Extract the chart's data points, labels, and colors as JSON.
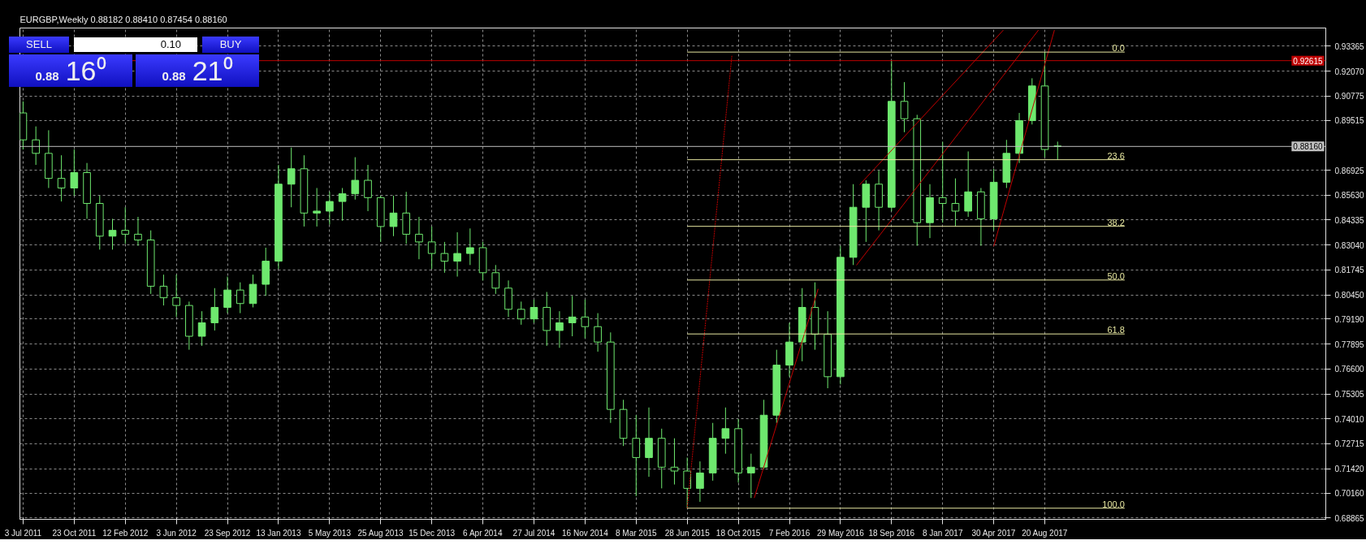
{
  "chart_data": {
    "type": "candlestick",
    "title": "EURGBP,Weekly 0.88182 0.88410 0.87454 0.88160",
    "annotations": [
      "SELL",
      "0.10",
      "BUY",
      "0.88 16⁰",
      "0.88 21⁰"
    ],
    "xlim": [
      "2011-06-26",
      "2019-04-28"
    ],
    "xticks": [
      {
        "value": "2011-07-03",
        "label": "3 Jul 2011"
      },
      {
        "value": "2011-10-23",
        "label": "23 Oct 2011"
      },
      {
        "value": "2012-02-12",
        "label": "12 Feb 2012"
      },
      {
        "value": "2012-06-03",
        "label": "3 Jun 2012"
      },
      {
        "value": "2012-09-23",
        "label": "23 Sep 2012"
      },
      {
        "value": "2013-01-13",
        "label": "13 Jan 2013"
      },
      {
        "value": "2013-05-05",
        "label": "5 May 2013"
      },
      {
        "value": "2013-08-25",
        "label": "25 Aug 2013"
      },
      {
        "value": "2013-12-15",
        "label": "15 Dec 2013"
      },
      {
        "value": "2014-04-06",
        "label": "6 Apr 2014"
      },
      {
        "value": "2014-07-27",
        "label": "27 Jul 2014"
      },
      {
        "value": "2014-11-16",
        "label": "16 Nov 2014"
      },
      {
        "value": "2015-03-08",
        "label": "8 Mar 2015"
      },
      {
        "value": "2015-06-28",
        "label": "28 Jun 2015"
      },
      {
        "value": "2015-10-18",
        "label": "18 Oct 2015"
      },
      {
        "value": "2016-02-07",
        "label": "7 Feb 2016"
      },
      {
        "value": "2016-05-29",
        "label": "29 May 2016"
      },
      {
        "value": "2016-09-18",
        "label": "18 Sep 2016"
      },
      {
        "value": "2017-01-08",
        "label": "8 Jan 2017"
      },
      {
        "value": "2017-04-30",
        "label": "30 Apr 2017"
      },
      {
        "value": "2017-08-20",
        "label": "20 Aug 2017"
      }
    ],
    "ylim": [
      0.6879,
      0.9431
    ],
    "yticks": [
      {
        "value": 0.93365,
        "label": "0.93365"
      },
      {
        "value": 0.9207,
        "label": "0.92070"
      },
      {
        "value": 0.90775,
        "label": "0.90775"
      },
      {
        "value": 0.89515,
        "label": "0.89515"
      },
      {
        "value": 0.86925,
        "label": "0.86925"
      },
      {
        "value": 0.8563,
        "label": "0.85630"
      },
      {
        "value": 0.84335,
        "label": "0.84335"
      },
      {
        "value": 0.8304,
        "label": "0.83040"
      },
      {
        "value": 0.81745,
        "label": "0.81745"
      },
      {
        "value": 0.8045,
        "label": "0.80450"
      },
      {
        "value": 0.7919,
        "label": "0.79190"
      },
      {
        "value": 0.77895,
        "label": "0.77895"
      },
      {
        "value": 0.766,
        "label": "0.76600"
      },
      {
        "value": 0.75305,
        "label": "0.75305"
      },
      {
        "value": 0.7401,
        "label": "0.74010"
      },
      {
        "value": 0.72715,
        "label": "0.72715"
      },
      {
        "value": 0.7142,
        "label": "0.71420"
      },
      {
        "value": 0.7016,
        "label": "0.70160"
      },
      {
        "value": 0.68865,
        "label": "0.68865"
      }
    ],
    "grid": true,
    "ref_lines": [
      {
        "axis": "y",
        "value": 0.92615,
        "label": "0.92615",
        "color": "#c00000"
      },
      {
        "axis": "y",
        "value": 0.8816,
        "label": "0.88160",
        "color": "#c0c0c0"
      }
    ],
    "series": [
      {
        "type": "candlestick",
        "color": "#6ee86e",
        "x": [
          "2011-07-03",
          "2011-07-31",
          "2011-08-28",
          "2011-09-25",
          "2011-10-23",
          "2011-11-20",
          "2011-12-18",
          "2012-01-15",
          "2012-02-12",
          "2012-03-11",
          "2012-04-08",
          "2012-05-06",
          "2012-06-03",
          "2012-07-01",
          "2012-07-29",
          "2012-08-26",
          "2012-09-23",
          "2012-10-21",
          "2012-11-18",
          "2012-12-16",
          "2013-01-13",
          "2013-02-10",
          "2013-03-10",
          "2013-04-07",
          "2013-05-05",
          "2013-06-02",
          "2013-06-30",
          "2013-07-28",
          "2013-08-25",
          "2013-09-22",
          "2013-10-20",
          "2013-11-17",
          "2013-12-15",
          "2014-01-12",
          "2014-02-09",
          "2014-03-09",
          "2014-04-06",
          "2014-05-04",
          "2014-06-01",
          "2014-06-29",
          "2014-07-27",
          "2014-08-24",
          "2014-09-21",
          "2014-10-19",
          "2014-11-16",
          "2014-12-14",
          "2015-01-11",
          "2015-02-08",
          "2015-03-08",
          "2015-04-05",
          "2015-05-03",
          "2015-05-31",
          "2015-06-28",
          "2015-07-26",
          "2015-08-23",
          "2015-09-20",
          "2015-10-18",
          "2015-11-15",
          "2015-12-13",
          "2016-01-10",
          "2016-02-07",
          "2016-03-06",
          "2016-04-03",
          "2016-05-01",
          "2016-05-29",
          "2016-06-26",
          "2016-07-24",
          "2016-08-21",
          "2016-09-18",
          "2016-10-16",
          "2016-11-13",
          "2016-12-11",
          "2017-01-08",
          "2017-02-05",
          "2017-03-05",
          "2017-04-02",
          "2017-04-30",
          "2017-05-28",
          "2017-06-25",
          "2017-07-23",
          "2017-08-20",
          "2017-09-17"
        ],
        "ohlc": [
          [
            0.899,
            0.905,
            0.88,
            0.885
          ],
          [
            0.885,
            0.892,
            0.872,
            0.878
          ],
          [
            0.878,
            0.89,
            0.86,
            0.865
          ],
          [
            0.865,
            0.877,
            0.853,
            0.86
          ],
          [
            0.86,
            0.88,
            0.856,
            0.868
          ],
          [
            0.868,
            0.873,
            0.844,
            0.852
          ],
          [
            0.852,
            0.856,
            0.828,
            0.835
          ],
          [
            0.835,
            0.844,
            0.828,
            0.838
          ],
          [
            0.838,
            0.85,
            0.831,
            0.836
          ],
          [
            0.836,
            0.845,
            0.83,
            0.833
          ],
          [
            0.833,
            0.838,
            0.805,
            0.809
          ],
          [
            0.809,
            0.815,
            0.799,
            0.803
          ],
          [
            0.803,
            0.815,
            0.793,
            0.799
          ],
          [
            0.799,
            0.801,
            0.776,
            0.783
          ],
          [
            0.783,
            0.796,
            0.778,
            0.79
          ],
          [
            0.79,
            0.808,
            0.786,
            0.798
          ],
          [
            0.798,
            0.814,
            0.795,
            0.807
          ],
          [
            0.807,
            0.811,
            0.795,
            0.8
          ],
          [
            0.8,
            0.815,
            0.798,
            0.81
          ],
          [
            0.81,
            0.829,
            0.804,
            0.822
          ],
          [
            0.822,
            0.872,
            0.818,
            0.862
          ],
          [
            0.862,
            0.881,
            0.85,
            0.87
          ],
          [
            0.87,
            0.877,
            0.84,
            0.847
          ],
          [
            0.847,
            0.86,
            0.84,
            0.848
          ],
          [
            0.848,
            0.858,
            0.841,
            0.853
          ],
          [
            0.853,
            0.86,
            0.843,
            0.857
          ],
          [
            0.857,
            0.876,
            0.854,
            0.864
          ],
          [
            0.864,
            0.872,
            0.848,
            0.855
          ],
          [
            0.855,
            0.856,
            0.832,
            0.84
          ],
          [
            0.84,
            0.856,
            0.835,
            0.847
          ],
          [
            0.847,
            0.858,
            0.831,
            0.836
          ],
          [
            0.836,
            0.845,
            0.823,
            0.832
          ],
          [
            0.832,
            0.84,
            0.818,
            0.826
          ],
          [
            0.826,
            0.832,
            0.816,
            0.822
          ],
          [
            0.822,
            0.837,
            0.814,
            0.826
          ],
          [
            0.826,
            0.839,
            0.82,
            0.829
          ],
          [
            0.829,
            0.832,
            0.812,
            0.816
          ],
          [
            0.816,
            0.82,
            0.805,
            0.808
          ],
          [
            0.808,
            0.812,
            0.793,
            0.797
          ],
          [
            0.797,
            0.801,
            0.789,
            0.792
          ],
          [
            0.792,
            0.802,
            0.79,
            0.798
          ],
          [
            0.798,
            0.806,
            0.778,
            0.786
          ],
          [
            0.786,
            0.796,
            0.777,
            0.79
          ],
          [
            0.79,
            0.804,
            0.783,
            0.793
          ],
          [
            0.793,
            0.802,
            0.782,
            0.788
          ],
          [
            0.788,
            0.795,
            0.775,
            0.78
          ],
          [
            0.78,
            0.785,
            0.738,
            0.745
          ],
          [
            0.745,
            0.75,
            0.726,
            0.73
          ],
          [
            0.73,
            0.742,
            0.7,
            0.72
          ],
          [
            0.72,
            0.746,
            0.71,
            0.73
          ],
          [
            0.73,
            0.735,
            0.704,
            0.715
          ],
          [
            0.715,
            0.73,
            0.706,
            0.713
          ],
          [
            0.713,
            0.72,
            0.6936,
            0.704
          ],
          [
            0.704,
            0.718,
            0.697,
            0.712
          ],
          [
            0.712,
            0.738,
            0.708,
            0.73
          ],
          [
            0.73,
            0.746,
            0.722,
            0.735
          ],
          [
            0.735,
            0.74,
            0.707,
            0.712
          ],
          [
            0.712,
            0.722,
            0.699,
            0.715
          ],
          [
            0.715,
            0.75,
            0.714,
            0.742
          ],
          [
            0.742,
            0.776,
            0.738,
            0.768
          ],
          [
            0.768,
            0.79,
            0.762,
            0.78
          ],
          [
            0.78,
            0.808,
            0.77,
            0.798
          ],
          [
            0.798,
            0.811,
            0.776,
            0.784
          ],
          [
            0.784,
            0.796,
            0.756,
            0.762
          ],
          [
            0.762,
            0.83,
            0.758,
            0.824
          ],
          [
            0.824,
            0.862,
            0.82,
            0.85
          ],
          [
            0.85,
            0.864,
            0.832,
            0.862
          ],
          [
            0.862,
            0.869,
            0.838,
            0.85
          ],
          [
            0.85,
            0.926,
            0.848,
            0.905
          ],
          [
            0.905,
            0.915,
            0.889,
            0.896
          ],
          [
            0.896,
            0.898,
            0.83,
            0.842
          ],
          [
            0.842,
            0.862,
            0.834,
            0.855
          ],
          [
            0.855,
            0.884,
            0.842,
            0.852
          ],
          [
            0.852,
            0.865,
            0.84,
            0.848
          ],
          [
            0.848,
            0.879,
            0.845,
            0.858
          ],
          [
            0.858,
            0.86,
            0.83,
            0.844
          ],
          [
            0.844,
            0.87,
            0.838,
            0.863
          ],
          [
            0.863,
            0.885,
            0.86,
            0.878
          ],
          [
            0.878,
            0.899,
            0.873,
            0.895
          ],
          [
            0.895,
            0.917,
            0.893,
            0.913
          ],
          [
            0.913,
            0.9307,
            0.876,
            0.88
          ],
          [
            0.88182,
            0.8841,
            0.87454,
            0.8816
          ]
        ]
      },
      {
        "type": "line",
        "color": "#c00000",
        "line_style": "dotted",
        "x": [
          "2015-06-28",
          "2015-10-04"
        ],
        "values": [
          0.6936,
          0.929
        ]
      },
      {
        "type": "line",
        "color": "#c00000",
        "line_style": "solid",
        "x": [
          "2015-11-22",
          "2016-04-10"
        ],
        "values": [
          0.699,
          0.8076
        ]
      },
      {
        "type": "line",
        "color": "#c00000",
        "line_style": "solid",
        "x": [
          "2016-07-03",
          "2017-08-06"
        ],
        "values": [
          0.8199,
          0.942
        ]
      },
      {
        "type": "line",
        "color": "#c00000",
        "line_style": "solid",
        "x": [
          "2016-07-10",
          "2017-05-21"
        ],
        "values": [
          0.8617,
          0.942
        ]
      },
      {
        "type": "line",
        "color": "#c00000",
        "line_style": "solid",
        "x": [
          "2017-04-30",
          "2017-09-10"
        ],
        "values": [
          0.8297,
          0.942
        ]
      },
      {
        "type": "line",
        "name": "0.0",
        "color": "#e6e6a0",
        "line_style": "solid",
        "x": [
          "2015-06-28",
          "2018-02-11"
        ],
        "values": [
          0.9306,
          0.9306
        ]
      },
      {
        "type": "line",
        "name": "23.6",
        "color": "#e6e6a0",
        "line_style": "solid",
        "x": [
          "2015-06-28",
          "2018-02-11"
        ],
        "values": [
          0.8747,
          0.8747
        ]
      },
      {
        "type": "line",
        "name": "38.2",
        "color": "#e6e6a0",
        "line_style": "solid",
        "x": [
          "2015-06-28",
          "2018-02-11"
        ],
        "values": [
          0.8401,
          0.8401
        ]
      },
      {
        "type": "line",
        "name": "50.0",
        "color": "#e6e6a0",
        "line_style": "solid",
        "x": [
          "2015-06-28",
          "2018-02-11"
        ],
        "values": [
          0.8122,
          0.8122
        ]
      },
      {
        "type": "line",
        "name": "61.8",
        "color": "#e6e6a0",
        "line_style": "solid",
        "x": [
          "2015-06-28",
          "2018-02-11"
        ],
        "values": [
          0.7842,
          0.7842
        ]
      },
      {
        "type": "line",
        "name": "100.0",
        "color": "#e6e6a0",
        "line_style": "solid",
        "x": [
          "2015-06-28",
          "2018-02-11"
        ],
        "values": [
          0.6937,
          0.6937
        ]
      }
    ]
  }
}
